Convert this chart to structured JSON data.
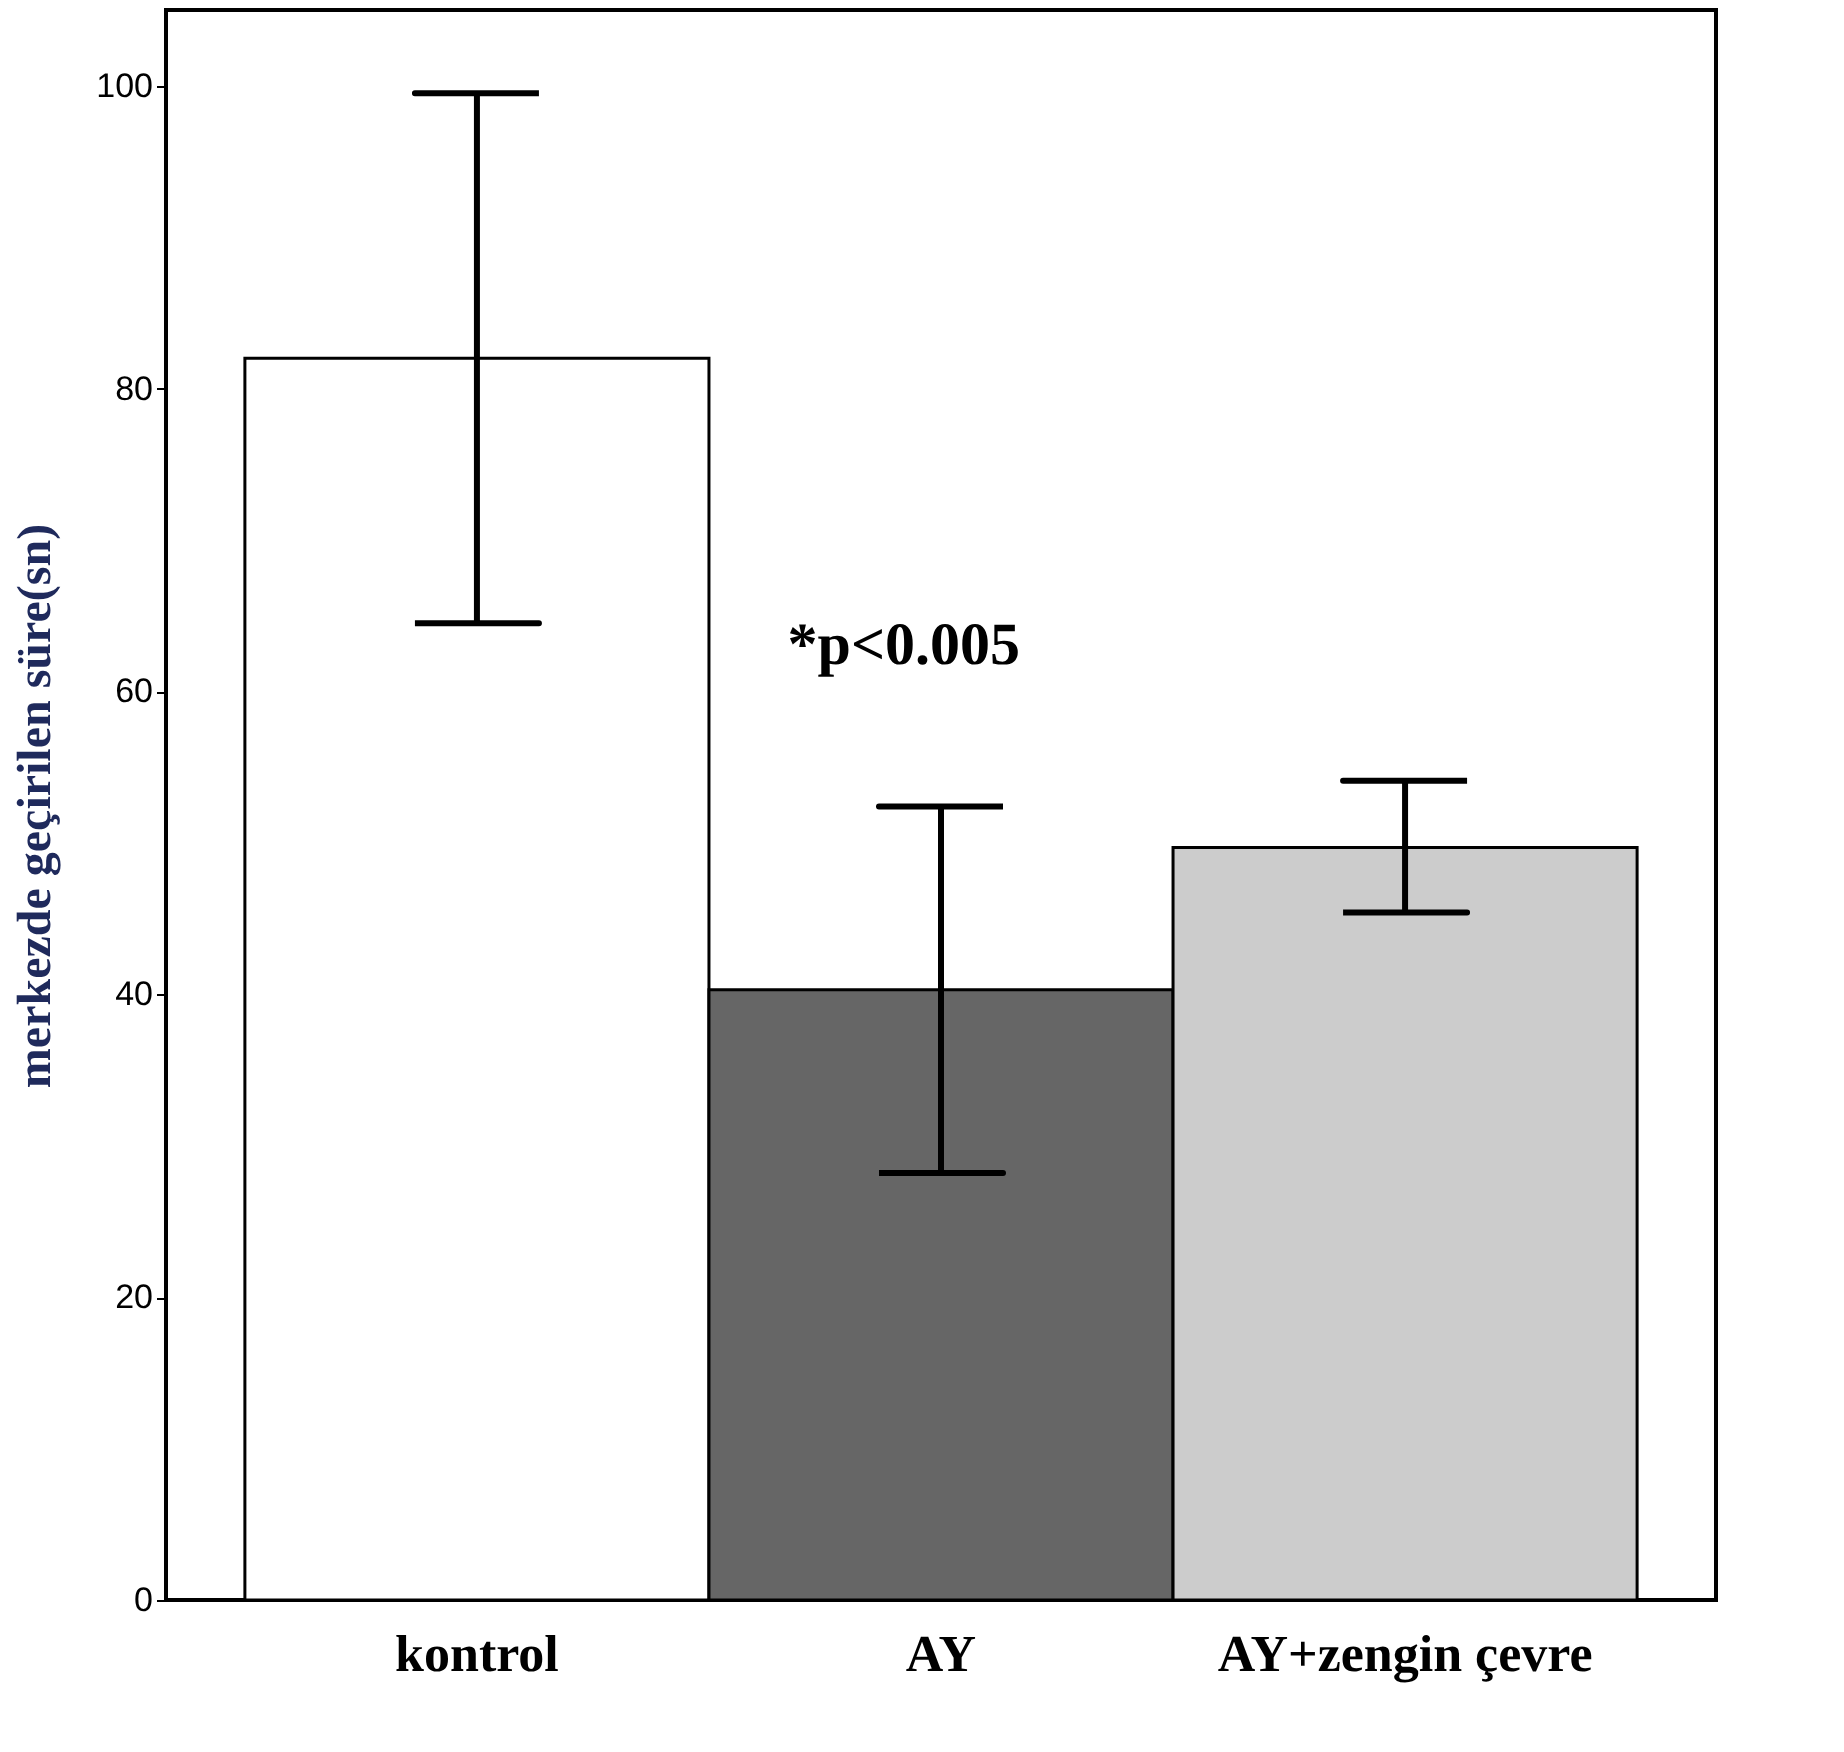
{
  "chart_data": {
    "type": "bar",
    "ylabel": "merkezde geçirilen süre(sn)",
    "categories": [
      "kontrol",
      "AY",
      "AY+zengin çevre"
    ],
    "values": [
      82.0,
      40.3,
      49.7
    ],
    "colors": [
      "#ffffff",
      "#666666",
      "#cccccc"
    ],
    "errors": [
      [
        64.5,
        99.5
      ],
      [
        28.2,
        52.4
      ],
      [
        45.4,
        54.1
      ]
    ],
    "ylim": [
      0,
      105
    ],
    "yticks": [
      0,
      20,
      40,
      60,
      80,
      100
    ],
    "grid": false,
    "annotations": [
      "*p<0.005"
    ]
  }
}
